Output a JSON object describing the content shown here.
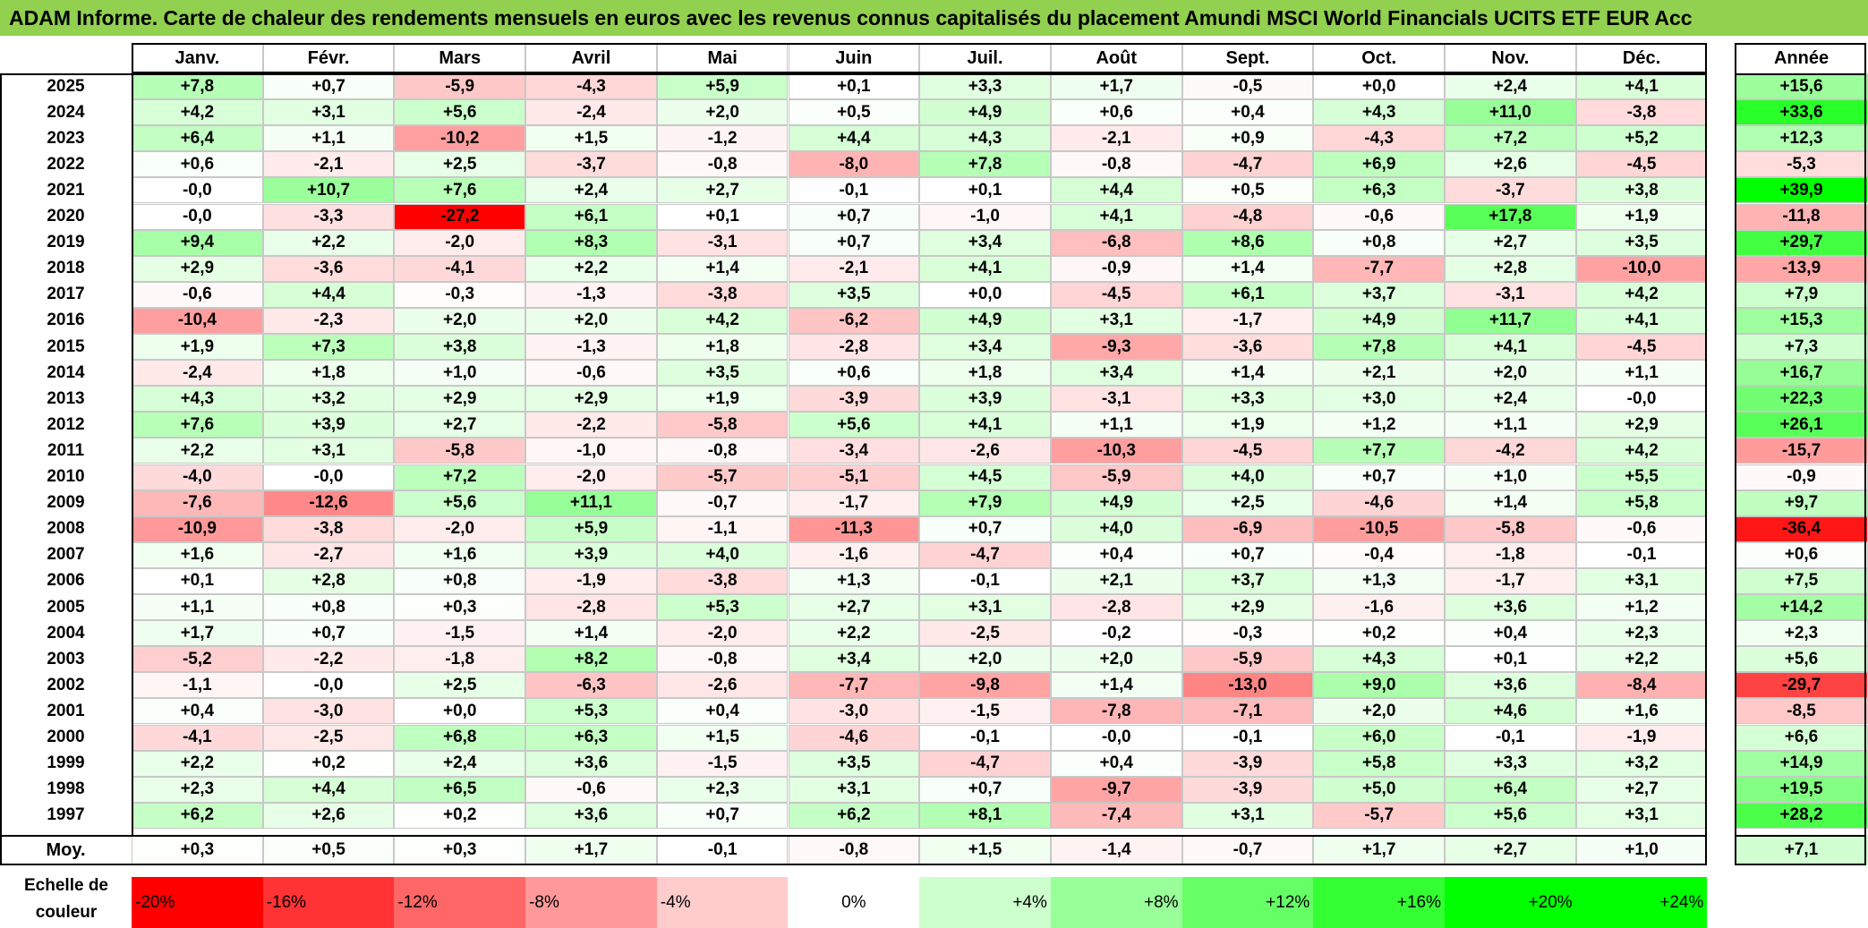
{
  "title": "ADAM Informe. Carte de chaleur des rendements mensuels en euros avec les revenus connus capitalisés du placement Amundi MSCI World Financials UCITS ETF EUR Acc",
  "colors": {
    "title_bg": "#92d050",
    "negative_max": "#ff0000",
    "zero": "#ffffff",
    "positive_max": "#00ff00"
  },
  "chart_data": {
    "type": "heatmap",
    "title": "ADAM Informe. Carte de chaleur des rendements mensuels en euros avec les revenus connus capitalisés du placement Amundi MSCI World Financials UCITS ETF EUR Acc",
    "columns": [
      "Janv.",
      "Févr.",
      "Mars",
      "Avril",
      "Mai",
      "Juin",
      "Juil.",
      "Août",
      "Sept.",
      "Oct.",
      "Nov.",
      "Déc."
    ],
    "year_column_label": "Année",
    "rows": [
      {
        "label": "2025",
        "values": [
          "+7,8",
          "+0,7",
          "-5,9",
          "-4,3",
          "+5,9",
          "+0,1",
          "+3,3",
          "+1,7",
          "-0,5",
          "+0,0",
          "+2,4",
          "+4,1"
        ],
        "year": "+15,6"
      },
      {
        "label": "2024",
        "values": [
          "+4,2",
          "+3,1",
          "+5,6",
          "-2,4",
          "+2,0",
          "+0,5",
          "+4,9",
          "+0,6",
          "+0,4",
          "+4,3",
          "+11,0",
          "-3,8"
        ],
        "year": "+33,6"
      },
      {
        "label": "2023",
        "values": [
          "+6,4",
          "+1,1",
          "-10,2",
          "+1,5",
          "-1,2",
          "+4,4",
          "+4,3",
          "-2,1",
          "+0,9",
          "-4,3",
          "+7,2",
          "+5,2"
        ],
        "year": "+12,3"
      },
      {
        "label": "2022",
        "values": [
          "+0,6",
          "-2,1",
          "+2,5",
          "-3,7",
          "-0,8",
          "-8,0",
          "+7,8",
          "-0,8",
          "-4,7",
          "+6,9",
          "+2,6",
          "-4,5"
        ],
        "year": "-5,3"
      },
      {
        "label": "2021",
        "values": [
          "-0,0",
          "+10,7",
          "+7,6",
          "+2,4",
          "+2,7",
          "-0,1",
          "+0,1",
          "+4,4",
          "+0,5",
          "+6,3",
          "-3,7",
          "+3,8"
        ],
        "year": "+39,9"
      },
      {
        "label": "2020",
        "values": [
          "-0,0",
          "-3,3",
          "-27,2",
          "+6,1",
          "+0,1",
          "+0,7",
          "-1,0",
          "+4,1",
          "-4,8",
          "-0,6",
          "+17,8",
          "+1,9"
        ],
        "year": "-11,8"
      },
      {
        "label": "2019",
        "values": [
          "+9,4",
          "+2,2",
          "-2,0",
          "+8,3",
          "-3,1",
          "+0,7",
          "+3,4",
          "-6,8",
          "+8,6",
          "+0,8",
          "+2,7",
          "+3,5"
        ],
        "year": "+29,7"
      },
      {
        "label": "2018",
        "values": [
          "+2,9",
          "-3,6",
          "-4,1",
          "+2,2",
          "+1,4",
          "-2,1",
          "+4,1",
          "-0,9",
          "+1,4",
          "-7,7",
          "+2,8",
          "-10,0"
        ],
        "year": "-13,9"
      },
      {
        "label": "2017",
        "values": [
          "-0,6",
          "+4,4",
          "-0,3",
          "-1,3",
          "-3,8",
          "+3,5",
          "+0,0",
          "-4,5",
          "+6,1",
          "+3,7",
          "-3,1",
          "+4,2"
        ],
        "year": "+7,9"
      },
      {
        "label": "2016",
        "values": [
          "-10,4",
          "-2,3",
          "+2,0",
          "+2,0",
          "+4,2",
          "-6,2",
          "+4,9",
          "+3,1",
          "-1,7",
          "+4,9",
          "+11,7",
          "+4,1"
        ],
        "year": "+15,3"
      },
      {
        "label": "2015",
        "values": [
          "+1,9",
          "+7,3",
          "+3,8",
          "-1,3",
          "+1,8",
          "-2,8",
          "+3,4",
          "-9,3",
          "-3,6",
          "+7,8",
          "+4,1",
          "-4,5"
        ],
        "year": "+7,3"
      },
      {
        "label": "2014",
        "values": [
          "-2,4",
          "+1,8",
          "+1,0",
          "-0,6",
          "+3,5",
          "+0,6",
          "+1,8",
          "+3,4",
          "+1,4",
          "+2,1",
          "+2,0",
          "+1,1"
        ],
        "year": "+16,7"
      },
      {
        "label": "2013",
        "values": [
          "+4,3",
          "+3,2",
          "+2,9",
          "+2,9",
          "+1,9",
          "-3,9",
          "+3,9",
          "-3,1",
          "+3,3",
          "+3,0",
          "+2,4",
          "-0,0"
        ],
        "year": "+22,3"
      },
      {
        "label": "2012",
        "values": [
          "+7,6",
          "+3,9",
          "+2,7",
          "-2,2",
          "-5,8",
          "+5,6",
          "+4,1",
          "+1,1",
          "+1,9",
          "+1,2",
          "+1,1",
          "+2,9"
        ],
        "year": "+26,1"
      },
      {
        "label": "2011",
        "values": [
          "+2,2",
          "+3,1",
          "-5,8",
          "-1,0",
          "-0,8",
          "-3,4",
          "-2,6",
          "-10,3",
          "-4,5",
          "+7,7",
          "-4,2",
          "+4,2"
        ],
        "year": "-15,7"
      },
      {
        "label": "2010",
        "values": [
          "-4,0",
          "-0,0",
          "+7,2",
          "-2,0",
          "-5,7",
          "-5,1",
          "+4,5",
          "-5,9",
          "+4,0",
          "+0,7",
          "+1,0",
          "+5,5"
        ],
        "year": "-0,9"
      },
      {
        "label": "2009",
        "values": [
          "-7,6",
          "-12,6",
          "+5,6",
          "+11,1",
          "-0,7",
          "-1,7",
          "+7,9",
          "+4,9",
          "+2,5",
          "-4,6",
          "+1,4",
          "+5,8"
        ],
        "year": "+9,7"
      },
      {
        "label": "2008",
        "values": [
          "-10,9",
          "-3,8",
          "-2,0",
          "+5,9",
          "-1,1",
          "-11,3",
          "+0,7",
          "+4,0",
          "-6,9",
          "-10,5",
          "-5,8",
          "-0,6"
        ],
        "year": "-36,4"
      },
      {
        "label": "2007",
        "values": [
          "+1,6",
          "-2,7",
          "+1,6",
          "+3,9",
          "+4,0",
          "-1,6",
          "-4,7",
          "+0,4",
          "+0,7",
          "-0,4",
          "-1,8",
          "-0,1"
        ],
        "year": "+0,6"
      },
      {
        "label": "2006",
        "values": [
          "+0,1",
          "+2,8",
          "+0,8",
          "-1,9",
          "-3,8",
          "+1,3",
          "-0,1",
          "+2,1",
          "+3,7",
          "+1,3",
          "-1,7",
          "+3,1"
        ],
        "year": "+7,5"
      },
      {
        "label": "2005",
        "values": [
          "+1,1",
          "+0,8",
          "+0,3",
          "-2,8",
          "+5,3",
          "+2,7",
          "+3,1",
          "-2,8",
          "+2,9",
          "-1,6",
          "+3,6",
          "+1,2"
        ],
        "year": "+14,2"
      },
      {
        "label": "2004",
        "values": [
          "+1,7",
          "+0,7",
          "-1,5",
          "+1,4",
          "-2,0",
          "+2,2",
          "-2,5",
          "-0,2",
          "-0,3",
          "+0,2",
          "+0,4",
          "+2,3"
        ],
        "year": "+2,3"
      },
      {
        "label": "2003",
        "values": [
          "-5,2",
          "-2,2",
          "-1,8",
          "+8,2",
          "-0,8",
          "+3,4",
          "+2,0",
          "+2,0",
          "-5,9",
          "+4,3",
          "+0,1",
          "+2,2"
        ],
        "year": "+5,6"
      },
      {
        "label": "2002",
        "values": [
          "-1,1",
          "-0,0",
          "+2,5",
          "-6,3",
          "-2,6",
          "-7,7",
          "-9,8",
          "+1,4",
          "-13,0",
          "+9,0",
          "+3,6",
          "-8,4"
        ],
        "year": "-29,7"
      },
      {
        "label": "2001",
        "values": [
          "+0,4",
          "-3,0",
          "+0,0",
          "+5,3",
          "+0,4",
          "-3,0",
          "-1,5",
          "-7,8",
          "-7,1",
          "+2,0",
          "+4,6",
          "+1,6"
        ],
        "year": "-8,5"
      },
      {
        "label": "2000",
        "values": [
          "-4,1",
          "-2,5",
          "+6,8",
          "+6,3",
          "+1,5",
          "-4,6",
          "-0,1",
          "-0,0",
          "-0,1",
          "+6,0",
          "-0,1",
          "-1,9"
        ],
        "year": "+6,6"
      },
      {
        "label": "1999",
        "values": [
          "+2,2",
          "+0,2",
          "+2,4",
          "+3,6",
          "-1,5",
          "+3,5",
          "-4,7",
          "+0,4",
          "-3,9",
          "+5,8",
          "+3,3",
          "+3,2"
        ],
        "year": "+14,9"
      },
      {
        "label": "1998",
        "values": [
          "+2,3",
          "+4,4",
          "+6,5",
          "-0,6",
          "+2,3",
          "+3,1",
          "+0,7",
          "-9,7",
          "-3,9",
          "+5,0",
          "+6,4",
          "+2,7"
        ],
        "year": "+19,5"
      },
      {
        "label": "1997",
        "values": [
          "+6,2",
          "+2,6",
          "+0,2",
          "+3,6",
          "+0,7",
          "+6,2",
          "+8,1",
          "-7,4",
          "+3,1",
          "-5,7",
          "+5,6",
          "+3,1"
        ],
        "year": "+28,2"
      }
    ],
    "average": {
      "label": "Moy.",
      "values": [
        "+0,3",
        "+0,5",
        "+0,3",
        "+1,7",
        "-0,1",
        "-0,8",
        "+1,5",
        "-1,4",
        "-0,7",
        "+1,7",
        "+2,7",
        "+1,0"
      ],
      "year": "+7,1"
    },
    "legend": {
      "label": "Echelle de couleur",
      "items": [
        "-20%",
        "-16%",
        "-12%",
        "-8%",
        "-4%",
        "0%",
        "+4%",
        "+8%",
        "+12%",
        "+16%",
        "+20%",
        "+24%"
      ]
    }
  }
}
